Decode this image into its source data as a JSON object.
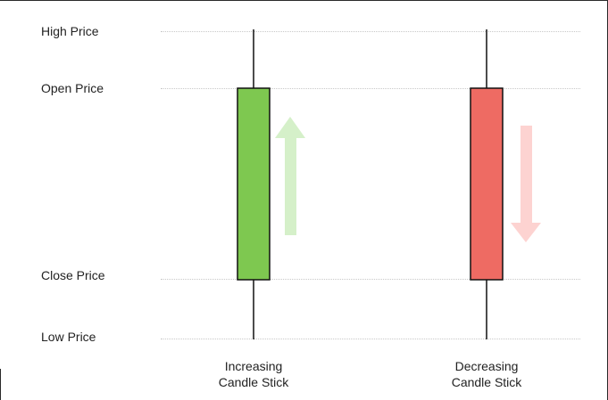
{
  "levels": {
    "high": "High Price",
    "open": "Open Price",
    "close": "Close Price",
    "low": "Low Price"
  },
  "candles": {
    "increasing": {
      "caption_line1": "Increasing",
      "caption_line2": "Candle Stick",
      "body_color": "#7ec850",
      "arrow_color": "#d5f0c9",
      "direction": "up"
    },
    "decreasing": {
      "caption_line1": "Decreasing",
      "caption_line2": "Candle Stick",
      "body_color": "#ee6b63",
      "arrow_color": "#fdd3d1",
      "direction": "down"
    }
  }
}
